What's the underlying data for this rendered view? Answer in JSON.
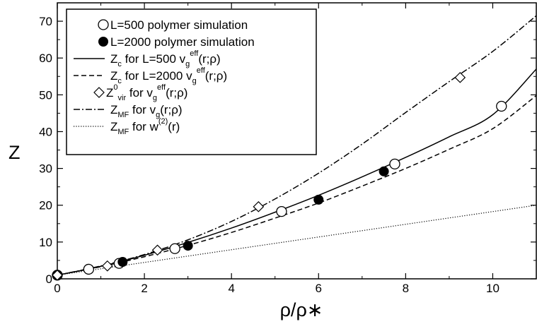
{
  "chart_data": {
    "type": "line",
    "xlabel": "ρ/ρ∗",
    "ylabel": "Z",
    "xlim": [
      0,
      11
    ],
    "ylim": [
      0,
      75
    ],
    "xticks": [
      "0",
      "2",
      "4",
      "6",
      "8",
      "10"
    ],
    "yticks": [
      "0",
      "10",
      "20",
      "30",
      "40",
      "50",
      "60",
      "70"
    ],
    "grid": false,
    "legend_position": "top-left",
    "legend": [
      {
        "parts": [
          "L=500  polymer simulation"
        ]
      },
      {
        "parts": [
          "L=2000 polymer simulation"
        ]
      },
      {
        "parts": [
          "Z",
          "c",
          " for L=500  v",
          "g",
          "eff",
          "(r;ρ)"
        ]
      },
      {
        "parts": [
          "Z",
          "c",
          " for L=2000 v",
          "g",
          "eff",
          "(r;ρ)"
        ]
      },
      {
        "parts": [
          "Z",
          "0",
          "vir",
          " for v",
          "g",
          "eff",
          "(r;ρ)"
        ]
      },
      {
        "parts": [
          "Z",
          "MF",
          " for v",
          "g",
          "(r;ρ)"
        ]
      },
      {
        "parts": [
          "Z",
          "MF",
          " for w",
          "(2)",
          "(r)"
        ]
      }
    ],
    "series": [
      {
        "style": "open-circle",
        "x": [
          0,
          0.72,
          1.42,
          2.7,
          5.15,
          7.75,
          10.2
        ],
        "y": [
          1.0,
          2.6,
          4.2,
          8.2,
          18.3,
          31.2,
          46.9
        ]
      },
      {
        "style": "filled-circle",
        "x": [
          0,
          1.5,
          3.0,
          6.0,
          7.5
        ],
        "y": [
          1.0,
          4.6,
          9.0,
          21.5,
          29.2
        ]
      },
      {
        "style": "open-diamond",
        "x": [
          0,
          1.15,
          2.3,
          4.62,
          9.25
        ],
        "y": [
          1.0,
          3.5,
          7.8,
          19.6,
          54.7
        ]
      },
      {
        "style": "solid",
        "x": [
          0,
          1,
          2,
          3,
          4,
          5,
          6,
          7,
          8,
          9,
          10,
          11
        ],
        "y": [
          1.0,
          3.4,
          6.4,
          9.9,
          13.8,
          18.1,
          22.7,
          27.7,
          33.0,
          38.6,
          44.6,
          57.0
        ]
      },
      {
        "style": "dashed",
        "x": [
          0,
          1,
          2,
          3,
          4,
          5,
          6,
          7,
          8,
          9,
          10,
          11
        ],
        "y": [
          1.0,
          3.3,
          6.0,
          9.1,
          12.6,
          16.5,
          20.6,
          25.2,
          30.0,
          35.2,
          40.8,
          49.8
        ]
      },
      {
        "style": "dashdot",
        "x": [
          0,
          1,
          2,
          3,
          4,
          5,
          6,
          7,
          8,
          9,
          10,
          11
        ],
        "y": [
          1.0,
          3.5,
          6.6,
          10.6,
          15.6,
          21.7,
          28.7,
          36.6,
          45.2,
          53.6,
          61.8,
          71.5
        ]
      },
      {
        "style": "dotted",
        "x": [
          0,
          11
        ],
        "y": [
          1.0,
          20.0
        ]
      }
    ]
  }
}
